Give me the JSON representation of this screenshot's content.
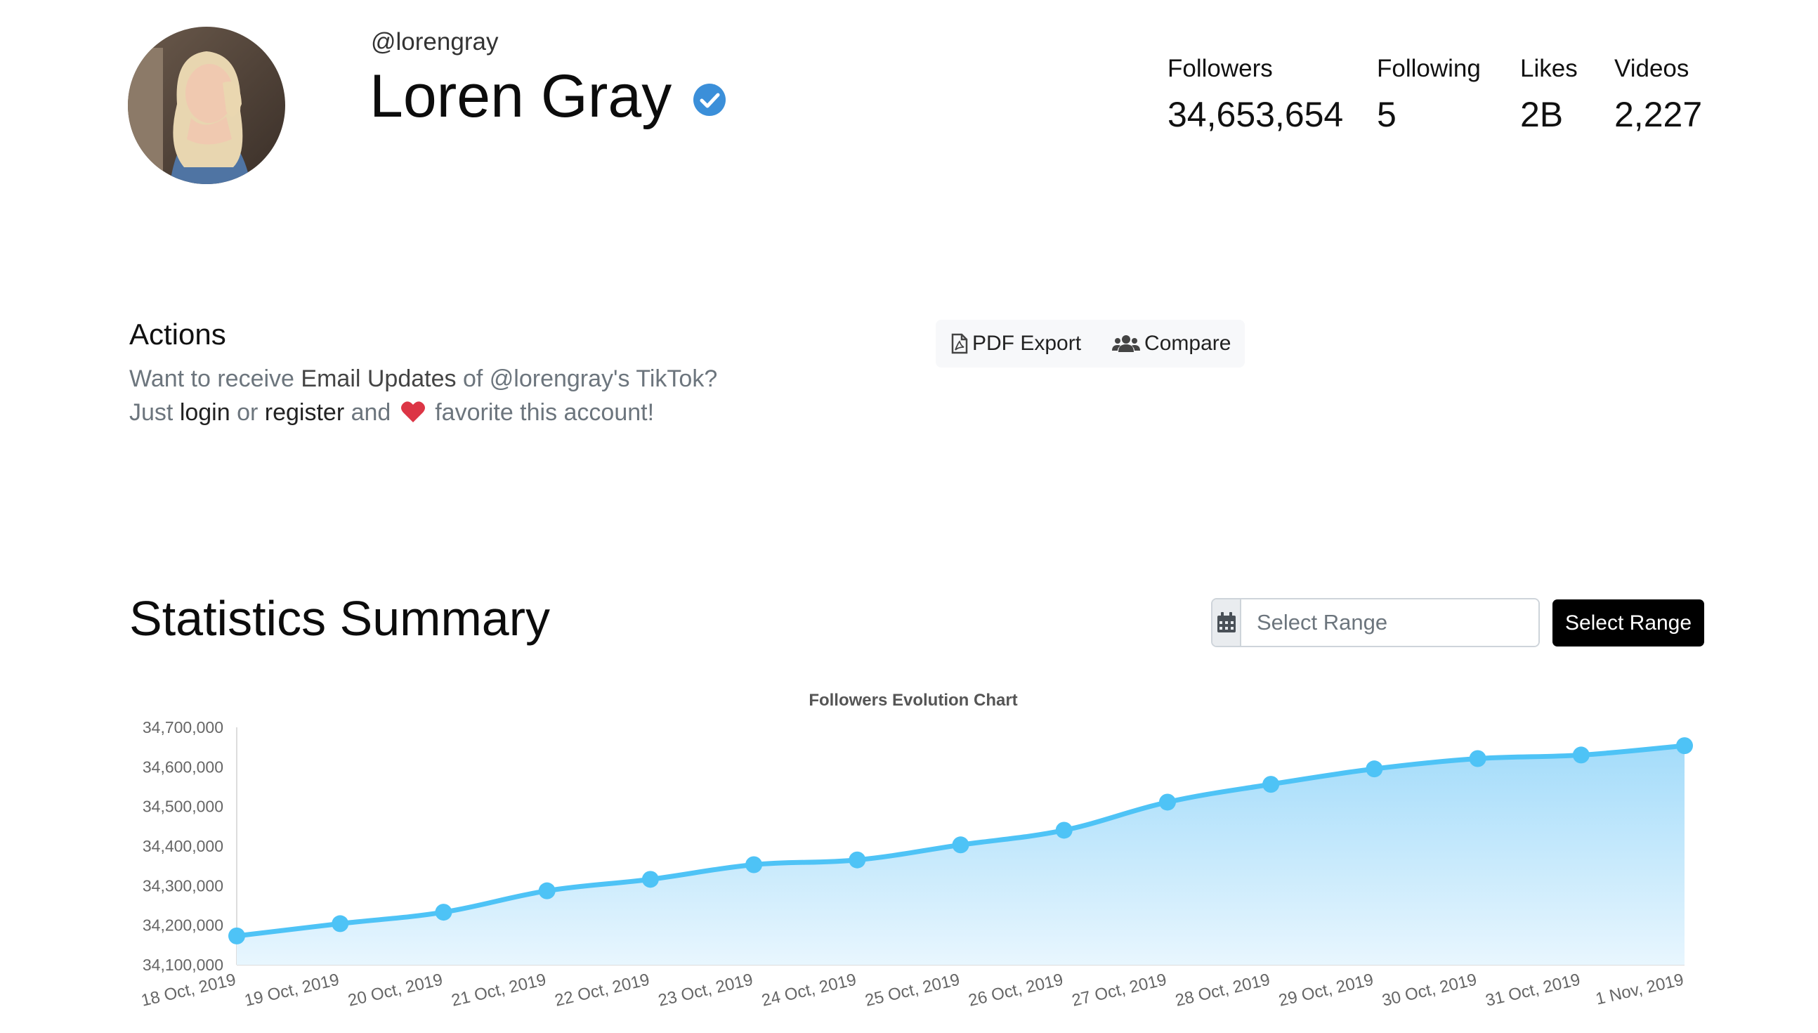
{
  "profile": {
    "handle": "@lorengray",
    "name": "Loren Gray",
    "verified_color": "#3b8fd9"
  },
  "stats": [
    {
      "label": "Followers",
      "value": "34,653,654"
    },
    {
      "label": "Following",
      "value": "5"
    },
    {
      "label": "Likes",
      "value": "2B"
    },
    {
      "label": "Videos",
      "value": "2,227"
    }
  ],
  "actions": {
    "title": "Actions",
    "line1_prefix": "Want to receive ",
    "line1_strong": "Email Updates",
    "line1_suffix": " of @lorengray's TikTok?",
    "line2_prefix": "Just ",
    "login_label": "login",
    "line2_or": " or ",
    "register_label": "register",
    "line2_and": " and ",
    "line2_suffix": " favorite this account!",
    "pdf_export_label": "PDF Export",
    "compare_label": "Compare"
  },
  "statistics": {
    "title": "Statistics Summary",
    "range_placeholder": "Select Range",
    "range_button_label": "Select Range"
  },
  "chart_data": {
    "type": "area",
    "title": "Followers Evolution Chart",
    "x": [
      "18 Oct, 2019",
      "19 Oct, 2019",
      "20 Oct, 2019",
      "21 Oct, 2019",
      "22 Oct, 2019",
      "23 Oct, 2019",
      "24 Oct, 2019",
      "25 Oct, 2019",
      "26 Oct, 2019",
      "27 Oct, 2019",
      "28 Oct, 2019",
      "29 Oct, 2019",
      "30 Oct, 2019",
      "31 Oct, 2019",
      "1 Nov, 2019"
    ],
    "series": [
      {
        "values": [
          34173000,
          34204000,
          34233000,
          34287000,
          34316000,
          34353000,
          34365000,
          34403000,
          34440000,
          34511000,
          34556000,
          34595000,
          34621000,
          34630000,
          34653654
        ]
      }
    ],
    "yticks": [
      "34,100,000",
      "34,200,000",
      "34,300,000",
      "34,400,000",
      "34,500,000",
      "34,600,000",
      "34,700,000"
    ],
    "ylim": [
      34100000,
      34700000
    ],
    "grid": false,
    "line_color": "#4ec3f6",
    "fill_color_top": "#a4dcfa",
    "fill_color_bottom": "#e8f6fe"
  }
}
